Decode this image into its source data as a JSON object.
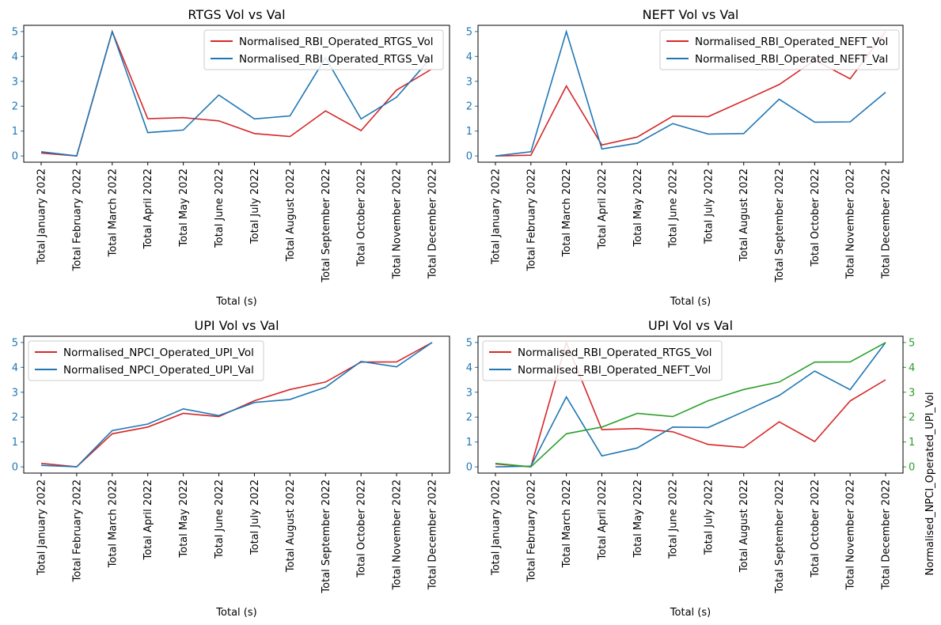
{
  "colors": {
    "red": "#d62728",
    "blue": "#1f77b4",
    "green": "#2ca02c"
  },
  "chart_data": [
    {
      "type": "line",
      "title": "RTGS Vol vs Val",
      "xlabel": "Total (s)",
      "ylabel": "",
      "ylim": [
        -0.25,
        5.25
      ],
      "yticks": [
        0,
        1,
        2,
        3,
        4,
        5
      ],
      "ytick_color": "#1f77b4",
      "legend_loc": "upper-right",
      "categories": [
        "Total January 2022",
        "Total February 2022",
        "Total March 2022",
        "Total April 2022",
        "Total May 2022",
        "Total June 2022",
        "Total July 2022",
        "Total August 2022",
        "Total September 2022",
        "Total October 2022",
        "Total November 2022",
        "Total December 2022"
      ],
      "series": [
        {
          "name": "Normalised_RBI_Operated_RTGS_Vol",
          "color": "#d62728",
          "values": [
            0.12,
            0.0,
            5.0,
            1.5,
            1.54,
            1.41,
            0.9,
            0.78,
            1.81,
            1.02,
            2.65,
            3.5
          ]
        },
        {
          "name": "Normalised_RBI_Operated_RTGS_Val",
          "color": "#1f77b4",
          "values": [
            0.17,
            0.0,
            5.0,
            0.94,
            1.04,
            2.45,
            1.49,
            1.61,
            3.95,
            1.49,
            2.36,
            4.0
          ]
        }
      ]
    },
    {
      "type": "line",
      "title": "NEFT Vol vs Val",
      "xlabel": "Total (s)",
      "ylabel": "",
      "ylim": [
        -0.25,
        5.25
      ],
      "yticks": [
        0,
        1,
        2,
        3,
        4,
        5
      ],
      "ytick_color": "#1f77b4",
      "legend_loc": "upper-right",
      "categories": [
        "Total January 2022",
        "Total February 2022",
        "Total March 2022",
        "Total April 2022",
        "Total May 2022",
        "Total June 2022",
        "Total July 2022",
        "Total August 2022",
        "Total September 2022",
        "Total October 2022",
        "Total November 2022",
        "Total December 2022"
      ],
      "series": [
        {
          "name": "Normalised_RBI_Operated_NEFT_Vol",
          "color": "#d62728",
          "values": [
            0.0,
            0.03,
            2.81,
            0.44,
            0.76,
            1.6,
            1.58,
            2.22,
            2.87,
            3.85,
            3.1,
            5.0
          ]
        },
        {
          "name": "Normalised_RBI_Operated_NEFT_Val",
          "color": "#1f77b4",
          "values": [
            0.0,
            0.17,
            5.0,
            0.28,
            0.51,
            1.3,
            0.88,
            0.9,
            2.28,
            1.36,
            1.37,
            2.56
          ]
        }
      ]
    },
    {
      "type": "line",
      "title": "UPI Vol vs Val",
      "xlabel": "Total (s)",
      "ylabel": "",
      "ylim": [
        -0.25,
        5.25
      ],
      "yticks": [
        0,
        1,
        2,
        3,
        4,
        5
      ],
      "ytick_color": "#1f77b4",
      "legend_loc": "upper-left",
      "categories": [
        "Total January 2022",
        "Total February 2022",
        "Total March 2022",
        "Total April 2022",
        "Total May 2022",
        "Total June 2022",
        "Total July 2022",
        "Total August 2022",
        "Total September 2022",
        "Total October 2022",
        "Total November 2022",
        "Total December 2022"
      ],
      "series": [
        {
          "name": "Normalised_NPCI_Operated_UPI_Vol",
          "color": "#d62728",
          "values": [
            0.14,
            0.0,
            1.33,
            1.6,
            2.15,
            2.02,
            2.66,
            3.11,
            3.41,
            4.21,
            4.22,
            5.0
          ]
        },
        {
          "name": "Normalised_NPCI_Operated_UPI_Val",
          "color": "#1f77b4",
          "values": [
            0.06,
            0.0,
            1.46,
            1.72,
            2.33,
            2.06,
            2.59,
            2.71,
            3.2,
            4.24,
            4.02,
            5.0
          ]
        }
      ]
    },
    {
      "type": "line",
      "title": "UPI Vol vs Val",
      "xlabel": "Total (s)",
      "ylabel": "",
      "ylim": [
        -0.25,
        5.25
      ],
      "yticks": [
        0,
        1,
        2,
        3,
        4,
        5
      ],
      "ytick_color": "#1f77b4",
      "legend_loc": "upper-left",
      "categories": [
        "Total January 2022",
        "Total February 2022",
        "Total March 2022",
        "Total April 2022",
        "Total May 2022",
        "Total June 2022",
        "Total July 2022",
        "Total August 2022",
        "Total September 2022",
        "Total October 2022",
        "Total November 2022",
        "Total December 2022"
      ],
      "series": [
        {
          "name": "Normalised_RBI_Operated_RTGS_Vol",
          "color": "#d62728",
          "values": [
            0.12,
            0.0,
            5.0,
            1.5,
            1.54,
            1.41,
            0.9,
            0.78,
            1.81,
            1.02,
            2.65,
            3.5
          ]
        },
        {
          "name": "Normalised_RBI_Operated_NEFT_Vol",
          "color": "#1f77b4",
          "values": [
            0.0,
            0.03,
            2.81,
            0.44,
            0.76,
            1.6,
            1.58,
            2.22,
            2.87,
            3.85,
            3.1,
            5.0
          ]
        }
      ],
      "secondary_axis": {
        "ylabel": "Normalised_NPCI_Operated_UPI_Vol",
        "color": "#2ca02c",
        "ylim": [
          -0.25,
          5.25
        ],
        "yticks": [
          0,
          1,
          2,
          3,
          4,
          5
        ],
        "series": [
          {
            "name": "Normalised_NPCI_Operated_UPI_Vol",
            "color": "#2ca02c",
            "values": [
              0.14,
              0.0,
              1.33,
              1.6,
              2.15,
              2.02,
              2.66,
              3.11,
              3.41,
              4.21,
              4.22,
              5.0
            ]
          }
        ]
      }
    }
  ]
}
